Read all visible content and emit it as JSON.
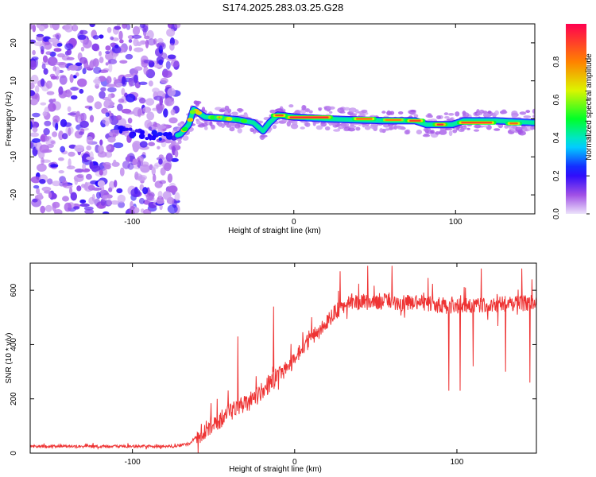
{
  "title": "S174.2025.283.03.25.G28",
  "chart_data": [
    {
      "type": "heatmap",
      "name": "spectrogram",
      "xlabel": "Height of straight line (km)",
      "ylabel": "Frequency (Hz)",
      "xlim": [
        -163,
        149
      ],
      "ylim": [
        -25,
        25
      ],
      "xticks": [
        -100,
        0,
        100
      ],
      "yticks": [
        20,
        10,
        0,
        -10,
        -20
      ],
      "noise_region": {
        "x_from": -163,
        "x_to": -72,
        "y_from": -25,
        "y_to": 25
      },
      "ridge_points": [
        {
          "x": -105,
          "y": -3.0
        },
        {
          "x": -95,
          "y": -4.0
        },
        {
          "x": -85,
          "y": -4.5
        },
        {
          "x": -75,
          "y": -4.8
        },
        {
          "x": -70,
          "y": -4.0
        },
        {
          "x": -65,
          "y": -1.5
        },
        {
          "x": -62,
          "y": 2.5
        },
        {
          "x": -55,
          "y": 0.5
        },
        {
          "x": -45,
          "y": 0.2
        },
        {
          "x": -35,
          "y": -0.2
        },
        {
          "x": -25,
          "y": -1.0
        },
        {
          "x": -19,
          "y": -3.2
        },
        {
          "x": -15,
          "y": -1.0
        },
        {
          "x": -10,
          "y": 1.0
        },
        {
          "x": 0,
          "y": 0.5
        },
        {
          "x": 20,
          "y": 0.0
        },
        {
          "x": 40,
          "y": -0.3
        },
        {
          "x": 60,
          "y": -0.5
        },
        {
          "x": 75,
          "y": -0.5
        },
        {
          "x": 82,
          "y": -1.5
        },
        {
          "x": 98,
          "y": -1.5
        },
        {
          "x": 105,
          "y": -0.5
        },
        {
          "x": 125,
          "y": -0.5
        },
        {
          "x": 149,
          "y": -1.0
        }
      ],
      "ridge_segments": [
        {
          "x1": -4,
          "x2": 23,
          "y": 0.4,
          "amp": 0.95
        },
        {
          "x1": 37,
          "x2": 50,
          "y": 0.0,
          "amp": 0.85
        },
        {
          "x1": 55,
          "x2": 68,
          "y": -0.3,
          "amp": 0.8
        },
        {
          "x1": 70,
          "x2": 80,
          "y": -0.5,
          "amp": 0.9
        },
        {
          "x1": 87,
          "x2": 94,
          "y": -1.5,
          "amp": 0.95
        },
        {
          "x1": 102,
          "x2": 124,
          "y": -1.0,
          "amp": 0.9
        },
        {
          "x1": 132,
          "x2": 140,
          "y": -1.2,
          "amp": 0.85
        },
        {
          "x1": -13,
          "x2": -5,
          "y": 0.9,
          "amp": 0.9
        },
        {
          "x1": -48,
          "x2": -44,
          "y": 0.4,
          "amp": 0.8
        }
      ],
      "colorbar": {
        "label": "Normalized spectral amplitude",
        "range": [
          0,
          1
        ],
        "ticks": [
          0.0,
          0.2,
          0.4,
          0.6,
          0.8
        ]
      }
    },
    {
      "type": "line",
      "name": "snr",
      "xlabel": "Height of straight line (km)",
      "ylabel": "SNR (10 * v/v)",
      "xlim": [
        -163,
        149
      ],
      "ylim": [
        0,
        700
      ],
      "xticks": [
        -100,
        0,
        100
      ],
      "yticks": [
        0,
        200,
        400,
        600
      ],
      "color": "#ee3333",
      "baseline_points": [
        {
          "x": -163,
          "y": 25
        },
        {
          "x": -75,
          "y": 25
        },
        {
          "x": -65,
          "y": 35
        },
        {
          "x": -55,
          "y": 90
        },
        {
          "x": -45,
          "y": 130
        },
        {
          "x": -35,
          "y": 170
        },
        {
          "x": -25,
          "y": 200
        },
        {
          "x": -15,
          "y": 260
        },
        {
          "x": -5,
          "y": 310
        },
        {
          "x": 5,
          "y": 390
        },
        {
          "x": 15,
          "y": 450
        },
        {
          "x": 25,
          "y": 520
        },
        {
          "x": 35,
          "y": 555
        },
        {
          "x": 50,
          "y": 560
        },
        {
          "x": 80,
          "y": 550
        },
        {
          "x": 100,
          "y": 540
        },
        {
          "x": 130,
          "y": 550
        },
        {
          "x": 149,
          "y": 555
        }
      ],
      "peaks": [
        {
          "x": -35,
          "y": 430
        },
        {
          "x": -13,
          "y": 540
        },
        {
          "x": 28,
          "y": 670
        },
        {
          "x": 45,
          "y": 690
        },
        {
          "x": 60,
          "y": 690
        },
        {
          "x": 95,
          "y": 690
        },
        {
          "x": 115,
          "y": 680
        },
        {
          "x": 140,
          "y": 680
        }
      ],
      "dips": [
        {
          "x": 95,
          "y": 230
        },
        {
          "x": 102,
          "y": 230
        },
        {
          "x": 145,
          "y": 260
        },
        {
          "x": 130,
          "y": 300
        },
        {
          "x": 110,
          "y": 320
        }
      ]
    }
  ]
}
